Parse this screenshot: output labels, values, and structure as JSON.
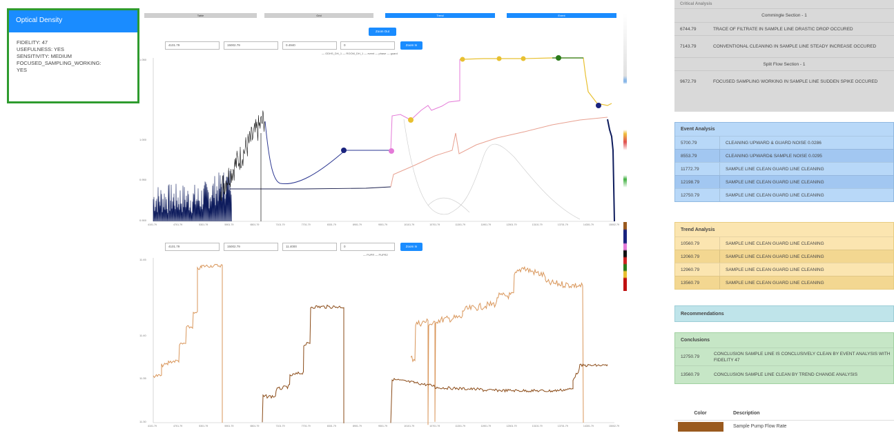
{
  "optical_card": {
    "title": "Optical Density",
    "lines": [
      "FIDELITY: 47",
      "USEFULNESS: YES",
      "SENSITIVITY: MEDIUM",
      "FOCUSED_SAMPLING_WORKING:\nYES"
    ]
  },
  "tabs": [
    {
      "label": "Table",
      "color": "#cfcfcf"
    },
    {
      "label": "Grid",
      "color": "#cfcfcf"
    },
    {
      "label": "Trend",
      "color": "#1a8cff"
    },
    {
      "label": "Event",
      "color": "#1a8cff"
    }
  ],
  "zoom_out_label": "Zoom Out",
  "chart1": {
    "inputs": [
      "4101.79",
      "15002.79",
      "0.4940",
      "0"
    ],
    "zoom_in_label": "Zoom In",
    "legend": "— ODHS_DH_1  — ROOM_DH_1  — event  — phase  — guard",
    "y_ticks": [
      "1.050",
      "1.000",
      "0.950",
      "0.900"
    ],
    "x_ticks": [
      "4101.79",
      "4701.79",
      "5301.79",
      "5901.79",
      "6501.79",
      "7101.79",
      "7701.79",
      "8301.79",
      "8901.79",
      "9501.79",
      "10101.79",
      "10701.79",
      "11301.79",
      "11901.79",
      "12501.79",
      "13101.79",
      "13701.79",
      "14301.79",
      "15002.79"
    ]
  },
  "chart2": {
    "inputs": [
      "4101.79",
      "15002.79",
      "11.4000",
      "0"
    ],
    "zoom_in_label": "Zoom In",
    "legend": "— PUPR  — PUPR2",
    "y_ticks": [
      "11.45",
      "11.40",
      "11.35",
      "11.30"
    ],
    "x_ticks": [
      "4101.79",
      "4701.79",
      "5301.79",
      "5901.79",
      "6501.79",
      "7101.79",
      "7701.79",
      "8301.79",
      "8901.79",
      "9501.79",
      "10101.79",
      "10701.79",
      "11301.79",
      "11901.79",
      "12501.79",
      "13101.79",
      "13701.79",
      "14301.79",
      "15002.79"
    ]
  },
  "critical": {
    "title": "Critical Analysis",
    "section1": "Commingle Section - 1",
    "rows1": [
      {
        "time": "6744.79",
        "text": "TRACE OF FILTRATE IN SAMPLE LINE DRASTIC DROP OCCURED"
      },
      {
        "time": "7143.79",
        "text": "CONVENTIONAL CLEANING IN SAMPLE LINE STEADY INCREASE OCCURED"
      }
    ],
    "section2": "Split Flow Section - 1",
    "rows2": [
      {
        "time": "9672.79",
        "text": "FOCUSED SAMPLING WORKING IN SAMPLE LINE SUDDEN SPIKE OCCURED"
      }
    ]
  },
  "event": {
    "title": "Event Analysis",
    "rows": [
      {
        "time": "5700.79",
        "text": "CLEANING UPWARD & GUARD NOISE 0.0286"
      },
      {
        "time": "8553.79",
        "text": "CLEANING UPWARD& SAMPLE NOISE 0.0295"
      },
      {
        "time": "11772.79",
        "text": "SAMPLE LINE CLEAN GUARD LINE CLEANING"
      },
      {
        "time": "12198.79",
        "text": "SAMPLE LINE CLEAN GUARD LINE CLEANING"
      },
      {
        "time": "12750.79",
        "text": "SAMPLE LINE CLEAN GUARD LINE CLEANING"
      }
    ]
  },
  "trend": {
    "title": "Trend Analysis",
    "rows": [
      {
        "time": "10560.79",
        "text": "SAMPLE LINE CLEAN GUARD LINE CLEANING"
      },
      {
        "time": "12060.79",
        "text": "SAMPLE LINE CLEAN GUARD LINE CLEANING"
      },
      {
        "time": "12960.79",
        "text": "SAMPLE LINE CLEAN GUARD LINE CLEANING"
      },
      {
        "time": "13560.79",
        "text": "SAMPLE LINE CLEAN GUARD LINE CLEANING"
      }
    ]
  },
  "recommendations": {
    "title": "Recommendations"
  },
  "conclusions": {
    "title": "Conclusions",
    "rows": [
      {
        "time": "12750.79",
        "text": "CONCLUSION SAMPLE LINE IS CONCLUSIVELY CLEAN BY EVENT ANALYSIS WITH FIDELITY 47"
      },
      {
        "time": "13560.79",
        "text": "CONCLUSION SAMPLE LINE CLEAN BY TREND CHANGE ANALYSIS"
      }
    ]
  },
  "color_table": {
    "header_color": "Color",
    "header_desc": "Description",
    "rows": [
      {
        "swatch": "#9a5a1e",
        "desc": "Sample Pump Flow Rate"
      }
    ]
  },
  "colors": {
    "critical_bg": "#d9d9d9",
    "event_bg": "#b8d8f8",
    "trend_bg": "#fbe5b0",
    "reco_bg": "#bfe4ea",
    "concl_bg": "#c6e6c6"
  }
}
